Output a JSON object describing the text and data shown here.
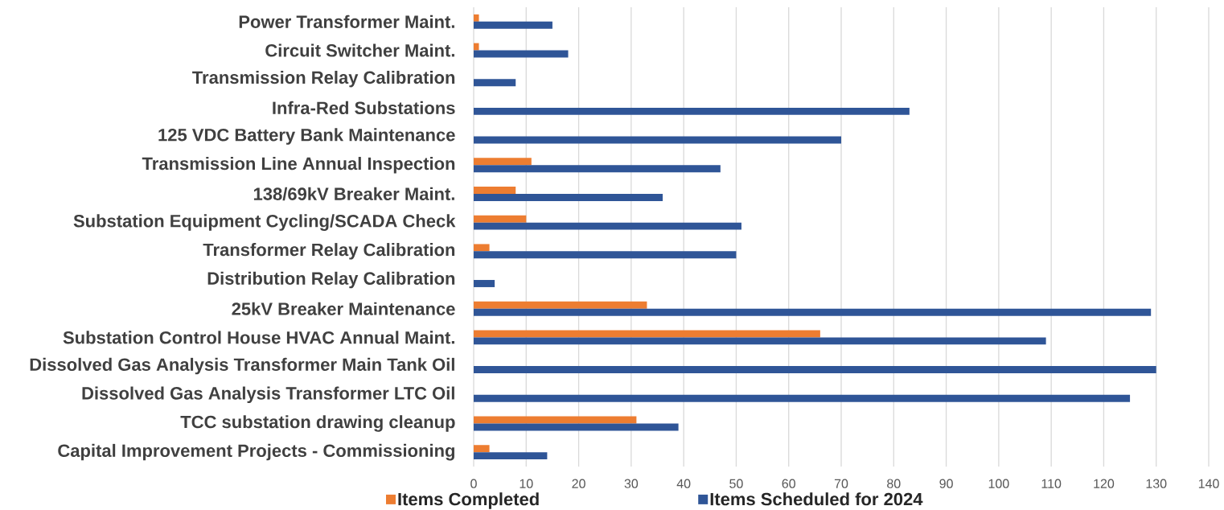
{
  "chart_data": {
    "type": "bar",
    "orientation": "horizontal",
    "categories": [
      "Power Transformer Maint.",
      "Circuit Switcher Maint.",
      "Transmission Relay Calibration",
      "Infra-Red Substations",
      "125 VDC Battery Bank Maintenance",
      "Transmission Line Annual Inspection",
      "138/69kV Breaker Maint.",
      "Substation Equipment Cycling/SCADA Check",
      "Transformer Relay Calibration",
      "Distribution Relay Calibration",
      "25kV Breaker Maintenance",
      "Substation Control House HVAC Annual Maint.",
      "Dissolved Gas Analysis Transformer Main Tank Oil",
      "Dissolved Gas Analysis Transformer LTC Oil",
      "TCC substation drawing cleanup",
      "Capital Improvement Projects - Commissioning"
    ],
    "series": [
      {
        "name": "Items Completed",
        "color": "#ed7d31",
        "values": [
          1,
          1,
          null,
          null,
          null,
          11,
          8,
          10,
          3,
          null,
          33,
          66,
          null,
          null,
          31,
          3
        ]
      },
      {
        "name": "Items Scheduled for 2024",
        "color": "#2f5597",
        "values": [
          15,
          18,
          8,
          83,
          70,
          47,
          36,
          51,
          50,
          4,
          129,
          109,
          130,
          125,
          39,
          14
        ]
      }
    ],
    "xlim": [
      0,
      140
    ],
    "xticks": [
      0,
      10,
      20,
      30,
      40,
      50,
      60,
      70,
      80,
      90,
      100,
      110,
      120,
      130,
      140
    ],
    "grid": "x",
    "legend": "bottom"
  }
}
